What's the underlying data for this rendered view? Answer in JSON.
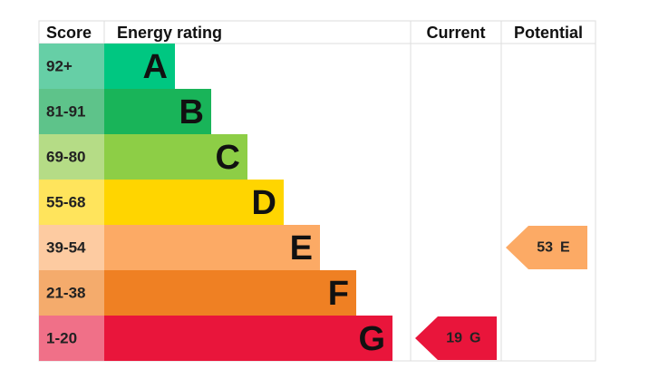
{
  "headers": {
    "score": "Score",
    "rating": "Energy rating",
    "current": "Current",
    "potential": "Potential"
  },
  "bands": [
    {
      "score": "92+",
      "letter": "A",
      "color": "#00c781",
      "light": "#66cfa6"
    },
    {
      "score": "81-91",
      "letter": "B",
      "color": "#19b459",
      "light": "#5ec38a"
    },
    {
      "score": "69-80",
      "letter": "C",
      "color": "#8dce46",
      "light": "#b5dc86"
    },
    {
      "score": "55-68",
      "letter": "D",
      "color": "#ffd500",
      "light": "#ffe45c"
    },
    {
      "score": "39-54",
      "letter": "E",
      "color": "#fcaa65",
      "light": "#fdcba1"
    },
    {
      "score": "21-38",
      "letter": "F",
      "color": "#ef8023",
      "light": "#f4ab6c"
    },
    {
      "score": "1-20",
      "letter": "G",
      "color": "#e9153b",
      "light": "#f07088"
    }
  ],
  "current": {
    "value": 19,
    "letter": "G"
  },
  "potential": {
    "value": 53,
    "letter": "E"
  }
}
